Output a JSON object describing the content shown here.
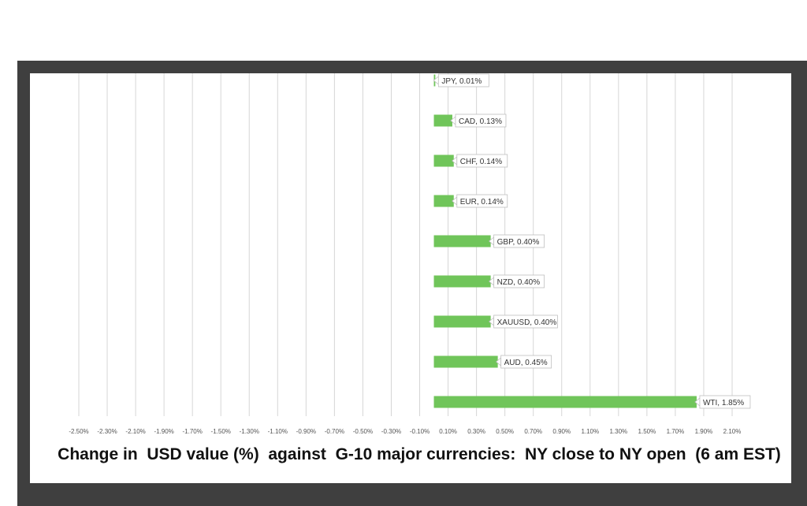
{
  "chart_data": {
    "type": "bar",
    "orientation": "horizontal",
    "title": "Change in  USD value (%)  against  G-10 major currencies:  NY close to NY open  (6 am EST)",
    "categories": [
      "JPY",
      "CAD",
      "CHF",
      "EUR",
      "GBP",
      "NZD",
      "XAUUSD",
      "AUD",
      "WTI"
    ],
    "values": [
      0.01,
      0.13,
      0.14,
      0.14,
      0.4,
      0.4,
      0.4,
      0.45,
      1.85
    ],
    "data_labels": [
      "JPY, 0.01%",
      "CAD, 0.13%",
      "CHF, 0.14%",
      "EUR, 0.14%",
      "GBP, 0.40%",
      "NZD, 0.40%",
      "XAUUSD, 0.40%",
      "AUD, 0.45%",
      "WTI, 1.85%"
    ],
    "x_ticks": [
      "-2.50%",
      "-2.30%",
      "-2.10%",
      "-1.90%",
      "-1.70%",
      "-1.50%",
      "-1.30%",
      "-1.10%",
      "-0.90%",
      "-0.70%",
      "-0.50%",
      "-0.30%",
      "-0.10%",
      "0.10%",
      "0.30%",
      "0.50%",
      "0.70%",
      "0.90%",
      "1.10%",
      "1.30%",
      "1.50%",
      "1.70%",
      "1.90%",
      "2.10%"
    ],
    "xlim": [
      -2.5,
      2.1
    ],
    "grid": true,
    "legend": "none",
    "bar_color": "#70c55a"
  }
}
